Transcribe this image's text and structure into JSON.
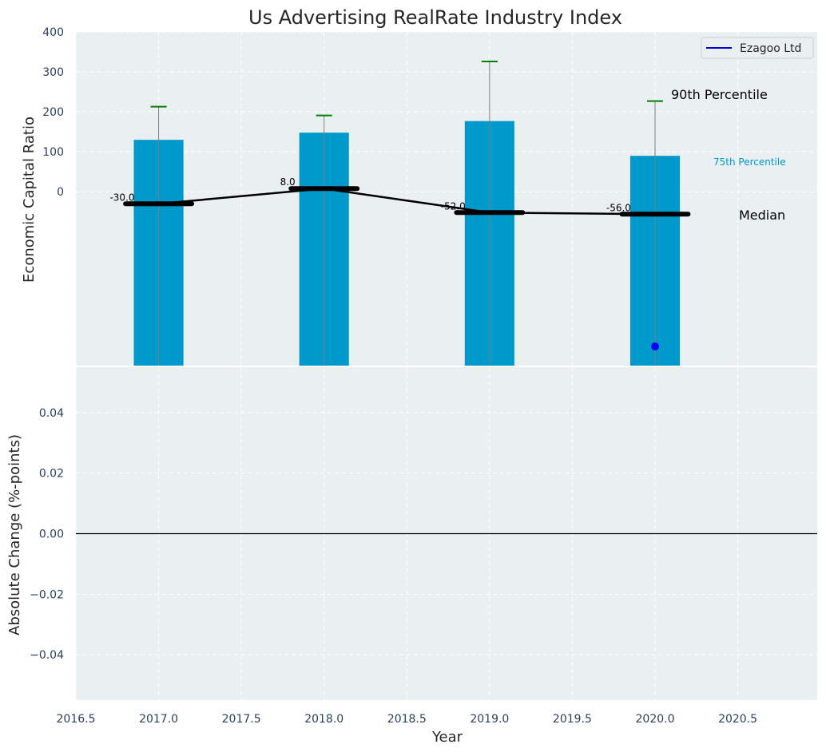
{
  "chart_data": {
    "type": "bar",
    "title": "Us Advertising RealRate Industry Index",
    "top": {
      "ylabel": "Economic Capital Ratio",
      "yticks": [
        0,
        100,
        200,
        300,
        400
      ],
      "ylim": [
        -435,
        400
      ],
      "categories": [
        2017,
        2018,
        2019,
        2020
      ],
      "bar_bottom": -435,
      "bar_top_values": [
        130,
        148,
        177,
        90
      ],
      "p90_values": [
        213,
        191,
        326,
        227
      ],
      "median_values": [
        -30,
        8,
        -52,
        -56
      ],
      "median_labels": [
        "-30.0",
        "8.0",
        "-52.0",
        "-56.0"
      ],
      "company_points": [
        {
          "x": 2020,
          "y": -387
        }
      ],
      "annotations": {
        "p90": "90th Percentile",
        "p75": "75th Percentile",
        "median": "Median"
      },
      "legend": {
        "label": "Ezagoo Ltd",
        "placement": "top-right"
      },
      "grid": true
    },
    "bottom": {
      "ylabel": "Absolute Change (%-points)",
      "yticks": [
        0.04,
        0.02,
        0.0,
        -0.02,
        -0.04
      ],
      "ytick_labels": [
        "0.04",
        "0.02",
        "0.00",
        "−0.02",
        "−0.04"
      ],
      "ylim": [
        -0.055,
        0.055
      ],
      "zero_line": 0,
      "grid": true
    },
    "xlabel": "Year",
    "xticks": [
      2016.5,
      2017.0,
      2017.5,
      2018.0,
      2018.5,
      2019.0,
      2019.5,
      2020.0,
      2020.5
    ],
    "xtick_labels": [
      "2016.5",
      "2017.0",
      "2017.5",
      "2018.0",
      "2018.5",
      "2019.0",
      "2019.5",
      "2020.0",
      "2020.5"
    ],
    "xlim": [
      2016.5,
      2020.98
    ],
    "colors": {
      "bar": "#0099cc",
      "median": "#000000",
      "p90_cap": "#008000",
      "whisker": "#808080",
      "company": "#0000ff",
      "p75_text": "#0099cc",
      "plot_bg": "#eaeff1",
      "grid": "#ffffff",
      "tick_text": "#2a3f5f"
    }
  }
}
